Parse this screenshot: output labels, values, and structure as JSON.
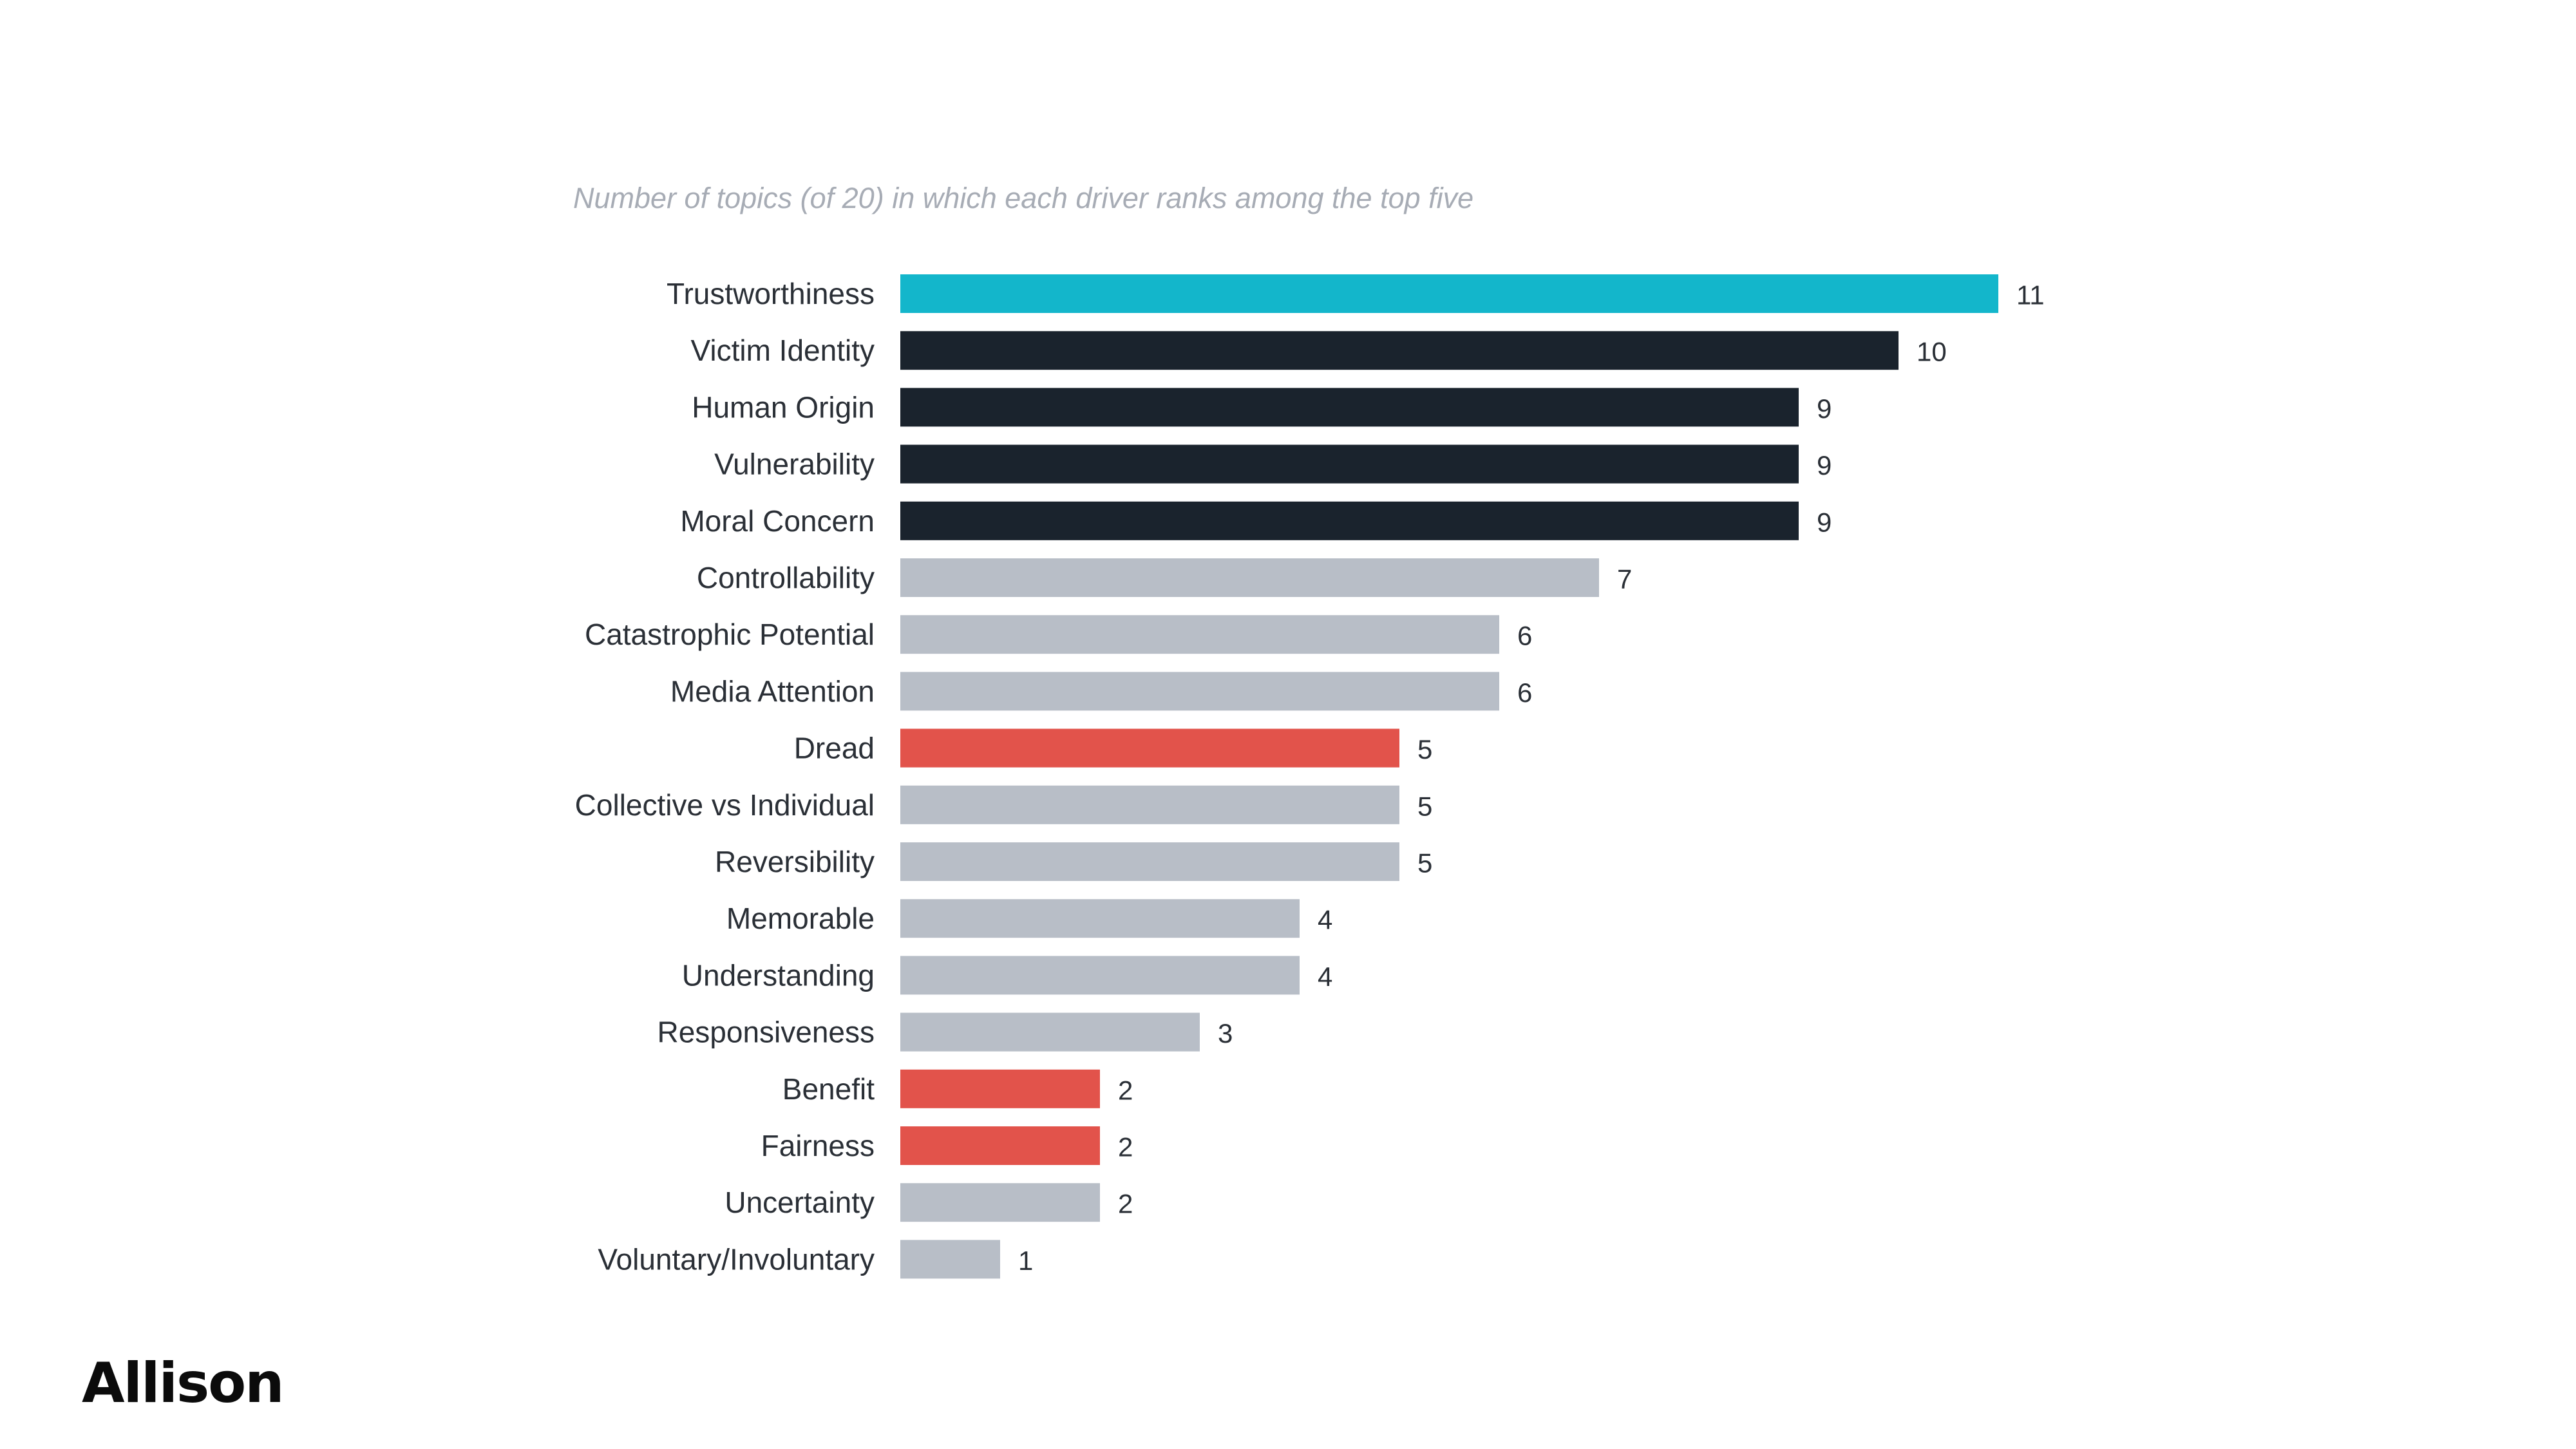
{
  "brand": {
    "logo_text": "Allison"
  },
  "chart_data": {
    "type": "bar",
    "orientation": "horizontal",
    "subtitle": "Number of topics (of 20) in which each driver ranks among the top five",
    "title": "",
    "xlabel": "",
    "ylabel": "",
    "xlim": [
      0,
      11
    ],
    "grid": false,
    "legend": "none",
    "categories": [
      "Trustworthiness",
      "Victim Identity",
      "Human Origin",
      "Vulnerability",
      "Moral Concern",
      "Controllability",
      "Catastrophic Potential",
      "Media Attention",
      "Dread",
      "Collective vs Individual",
      "Reversibility",
      "Memorable",
      "Understanding",
      "Responsiveness",
      "Benefit",
      "Fairness",
      "Uncertainty",
      "Voluntary/Involuntary"
    ],
    "values": [
      11,
      10,
      9,
      9,
      9,
      7,
      6,
      6,
      5,
      5,
      5,
      4,
      4,
      3,
      2,
      2,
      2,
      1
    ],
    "colors": [
      "#13b6cb",
      "#1a232d",
      "#1a232d",
      "#1a232d",
      "#1a232d",
      "#b8bec7",
      "#b8bec7",
      "#b8bec7",
      "#e2534b",
      "#b8bec7",
      "#b8bec7",
      "#b8bec7",
      "#b8bec7",
      "#b8bec7",
      "#e2534b",
      "#e2534b",
      "#b8bec7",
      "#b8bec7"
    ]
  }
}
